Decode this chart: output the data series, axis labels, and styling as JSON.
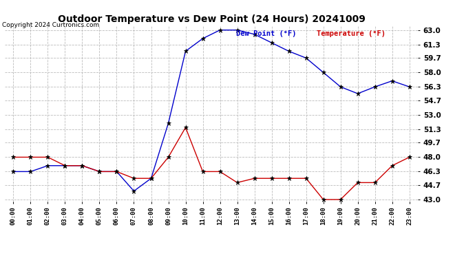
{
  "title": "Outdoor Temperature vs Dew Point (24 Hours) 20241009",
  "copyright": "Copyright 2024 Curtronics.com",
  "legend_dew": "Dew Point (°F)",
  "legend_temp": "Temperature (°F)",
  "hours": [
    "00:00",
    "01:00",
    "02:00",
    "03:00",
    "04:00",
    "05:00",
    "06:00",
    "07:00",
    "08:00",
    "09:00",
    "10:00",
    "11:00",
    "12:00",
    "13:00",
    "14:00",
    "15:00",
    "16:00",
    "17:00",
    "18:00",
    "19:00",
    "20:00",
    "21:00",
    "22:00",
    "23:00"
  ],
  "temperature": [
    48.0,
    48.0,
    48.0,
    47.0,
    47.0,
    46.3,
    46.3,
    45.5,
    45.5,
    48.0,
    51.5,
    46.3,
    46.3,
    45.0,
    45.5,
    45.5,
    45.5,
    45.5,
    43.0,
    43.0,
    45.0,
    45.0,
    47.0,
    48.0
  ],
  "dew_point": [
    46.3,
    46.3,
    47.0,
    47.0,
    47.0,
    46.3,
    46.3,
    44.0,
    45.5,
    52.0,
    60.5,
    62.0,
    63.0,
    63.0,
    62.5,
    61.5,
    60.5,
    59.7,
    58.0,
    56.3,
    55.5,
    56.3,
    57.0,
    56.3
  ],
  "ylim_min": 43.0,
  "ylim_max": 63.0,
  "yticks": [
    43.0,
    44.7,
    46.3,
    48.0,
    49.7,
    51.3,
    53.0,
    54.7,
    56.3,
    58.0,
    59.7,
    61.3,
    63.0
  ],
  "temp_color": "#cc0000",
  "dew_color": "#0000cc",
  "marker_color": "black",
  "bg_color": "#ffffff",
  "grid_color": "#bbbbbb",
  "title_color": "black",
  "copyright_color": "black",
  "legend_dew_color": "#0000cc",
  "legend_temp_color": "#cc0000"
}
